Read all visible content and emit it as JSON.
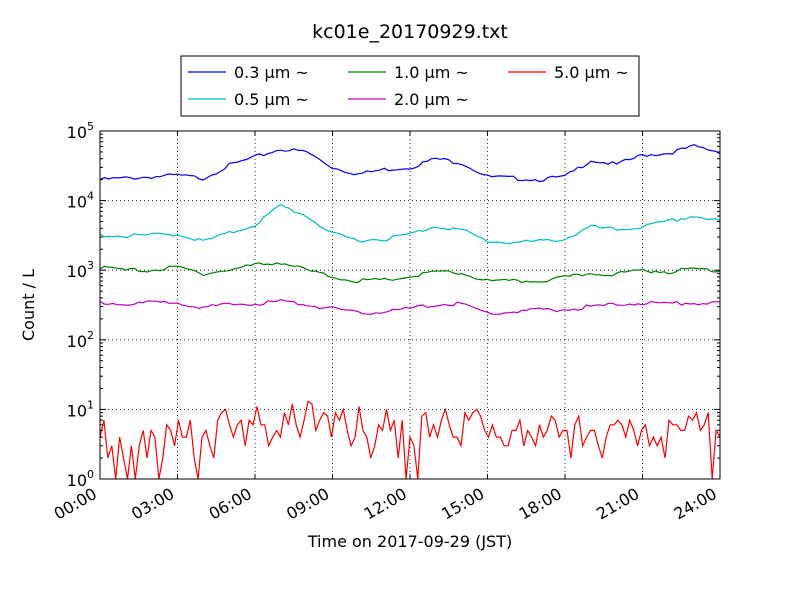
{
  "chart_data": {
    "type": "line",
    "title": "kc01e_20170929.txt",
    "xlabel": "Time on 2017-09-29 (JST)",
    "ylabel": "Count / L",
    "yscale": "log",
    "ylim": [
      1,
      100000
    ],
    "xlim": [
      "00:00",
      "24:00"
    ],
    "grid": true,
    "legend_position": "top",
    "x_ticks": [
      "00:00",
      "03:00",
      "06:00",
      "09:00",
      "12:00",
      "15:00",
      "18:00",
      "21:00",
      "24:00"
    ],
    "y_ticks": [
      {
        "value": 1,
        "base": "10",
        "exp": "0"
      },
      {
        "value": 10,
        "base": "10",
        "exp": "1"
      },
      {
        "value": 100,
        "base": "10",
        "exp": "2"
      },
      {
        "value": 1000,
        "base": "10",
        "exp": "3"
      },
      {
        "value": 10000,
        "base": "10",
        "exp": "4"
      },
      {
        "value": 100000,
        "base": "10",
        "exp": "5"
      }
    ],
    "x_hours": [
      0,
      1,
      2,
      3,
      4,
      5,
      6,
      7,
      8,
      9,
      10,
      11,
      12,
      13,
      14,
      15,
      16,
      17,
      18,
      19,
      20,
      21,
      22,
      23,
      24
    ],
    "series": [
      {
        "name": "0.3 μm ~",
        "color": "#0000ff",
        "values": [
          20000,
          21000,
          22000,
          23000,
          21000,
          32000,
          42000,
          55000,
          50000,
          30000,
          24000,
          28000,
          30000,
          40000,
          35000,
          22000,
          21000,
          20000,
          22000,
          38000,
          33000,
          45000,
          48000,
          60000,
          50000
        ]
      },
      {
        "name": "0.5 μm ~",
        "color": "#00bfbf",
        "values": [
          3200,
          3100,
          3200,
          3300,
          2600,
          3400,
          4500,
          8500,
          6000,
          3300,
          2700,
          2800,
          3300,
          4300,
          3800,
          2600,
          2500,
          2600,
          2800,
          4200,
          3800,
          4200,
          5000,
          6000,
          5000
        ]
      },
      {
        "name": "1.0 μm ~",
        "color": "#008000",
        "values": [
          1100,
          1000,
          1000,
          1100,
          900,
          1000,
          1200,
          1300,
          1000,
          800,
          700,
          720,
          800,
          950,
          900,
          700,
          690,
          700,
          780,
          900,
          880,
          1000,
          950,
          1050,
          1000
        ]
      },
      {
        "name": "2.0 μm ~",
        "color": "#bf00bf",
        "values": [
          340,
          330,
          340,
          350,
          290,
          320,
          330,
          360,
          320,
          280,
          240,
          255,
          280,
          320,
          330,
          240,
          250,
          270,
          270,
          300,
          320,
          340,
          330,
          340,
          330
        ]
      },
      {
        "name": "5.0 μm ~",
        "color": "#ff0000",
        "values": [
          4,
          2,
          1,
          3,
          5,
          6,
          6,
          8,
          9,
          5,
          6,
          2,
          7,
          6,
          7,
          4,
          3,
          4,
          4,
          5,
          3,
          3,
          4,
          5,
          4
        ]
      }
    ],
    "series_5um_fine": [
      4,
      7,
      2,
      3,
      1,
      4,
      2,
      1,
      3,
      1,
      3,
      5,
      2,
      5,
      4,
      1,
      2,
      6,
      5,
      3,
      7,
      4,
      4,
      7,
      2,
      1,
      4,
      5,
      3,
      2,
      7,
      9,
      10,
      6,
      4,
      6,
      7,
      3,
      7,
      6,
      11,
      6,
      6,
      3,
      4,
      5,
      4,
      9,
      6,
      12,
      6,
      4,
      7,
      13,
      12,
      5,
      7,
      9,
      8,
      4,
      9,
      7,
      10,
      5,
      3,
      4,
      11,
      5,
      4,
      2,
      3,
      6,
      5,
      10,
      5,
      7,
      2,
      7,
      1,
      4,
      3,
      1,
      8,
      9,
      4,
      6,
      4,
      7,
      10,
      6,
      4,
      4,
      3,
      9,
      7,
      9,
      10,
      8,
      5,
      4,
      6,
      4,
      4,
      3,
      3,
      5,
      5,
      7,
      3,
      5,
      4,
      3,
      6,
      4,
      5,
      8,
      7,
      4,
      5,
      5,
      2,
      6,
      8,
      3,
      4,
      5,
      5,
      3,
      2,
      4,
      6,
      6,
      7,
      6,
      4,
      7,
      5,
      3,
      5,
      6,
      3,
      4,
      3,
      4,
      2,
      7,
      6,
      6,
      5,
      5,
      8,
      7,
      9,
      5,
      6,
      9,
      1,
      5,
      4
    ]
  }
}
